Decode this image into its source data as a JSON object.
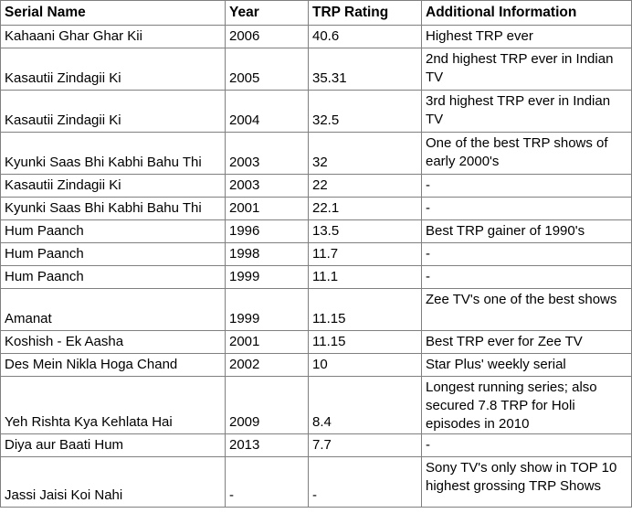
{
  "table": {
    "headers": [
      "Serial Name",
      "Year",
      "TRP Rating",
      "Additional Information"
    ],
    "rows": [
      {
        "name": "Kahaani Ghar Ghar Kii",
        "year": "2006",
        "trp": "40.6",
        "info": "Highest TRP ever"
      },
      {
        "name": "Kasautii Zindagii Ki",
        "year": "2005",
        "trp": "35.31",
        "info": "2nd highest TRP ever in Indian TV"
      },
      {
        "name": "Kasautii Zindagii Ki",
        "year": "2004",
        "trp": "32.5",
        "info": "3rd highest TRP ever in Indian TV"
      },
      {
        "name": "Kyunki Saas Bhi Kabhi Bahu Thi",
        "year": "2003",
        "trp": "32",
        "info": "One of the best TRP shows of early 2000's"
      },
      {
        "name": "Kasautii Zindagii Ki",
        "year": "2003",
        "trp": "22",
        "info": "-"
      },
      {
        "name": "Kyunki Saas Bhi Kabhi Bahu Thi",
        "year": "2001",
        "trp": "22.1",
        "info": "-"
      },
      {
        "name": "Hum Paanch",
        "year": "1996",
        "trp": "13.5",
        "info": "Best TRP gainer of 1990's"
      },
      {
        "name": "Hum Paanch",
        "year": "1998",
        "trp": "11.7",
        "info": "-"
      },
      {
        "name": "Hum Paanch",
        "year": "1999",
        "trp": "11.1",
        "info": "-"
      },
      {
        "name": "Amanat",
        "year": "1999",
        "trp": "11.15",
        "info": "Zee TV's one of the best shows"
      },
      {
        "name": "Koshish - Ek Aasha",
        "year": "2001",
        "trp": "11.15",
        "info": "Best TRP ever for Zee TV"
      },
      {
        "name": "Des Mein Nikla Hoga Chand",
        "year": "2002",
        "trp": "10",
        "info": "Star Plus' weekly serial"
      },
      {
        "name": "Yeh Rishta Kya Kehlata Hai",
        "year": "2009",
        "trp": "8.4",
        "info": "Longest running series; also secured 7.8 TRP for Holi episodes in 2010"
      },
      {
        "name": "Diya aur Baati Hum",
        "year": "2013",
        "trp": "7.7",
        "info": "-"
      },
      {
        "name": "Jassi Jaisi Koi Nahi",
        "year": "-",
        "trp": "-",
        "info": "Sony TV's only show in TOP 10 highest grossing TRP Shows"
      }
    ]
  }
}
